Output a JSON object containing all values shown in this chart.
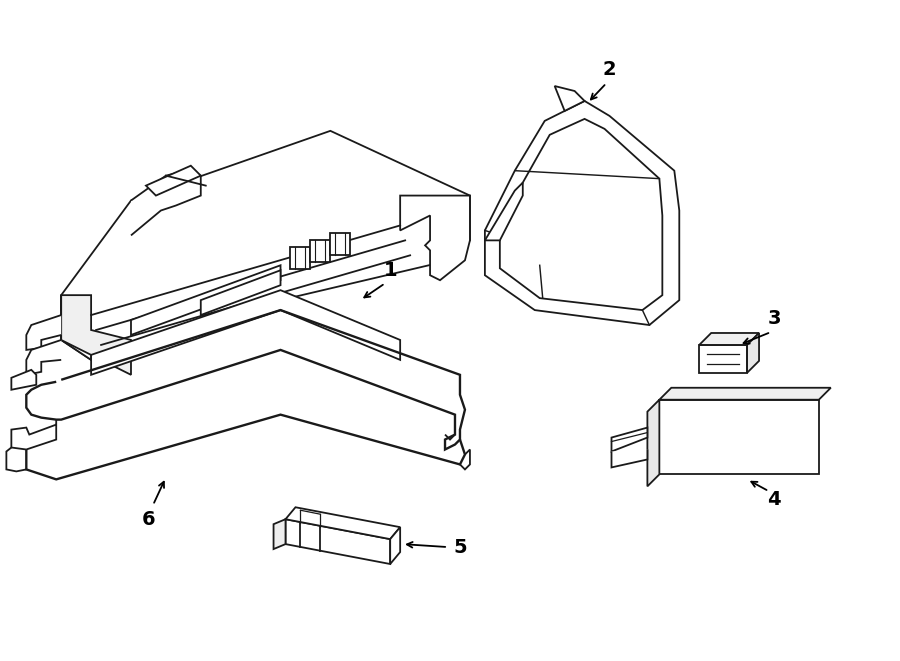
{
  "bg_color": "#ffffff",
  "line_color": "#1a1a1a",
  "line_width": 1.3,
  "fig_width": 9.0,
  "fig_height": 6.61,
  "dpi": 100,
  "label_fontsize": 14
}
